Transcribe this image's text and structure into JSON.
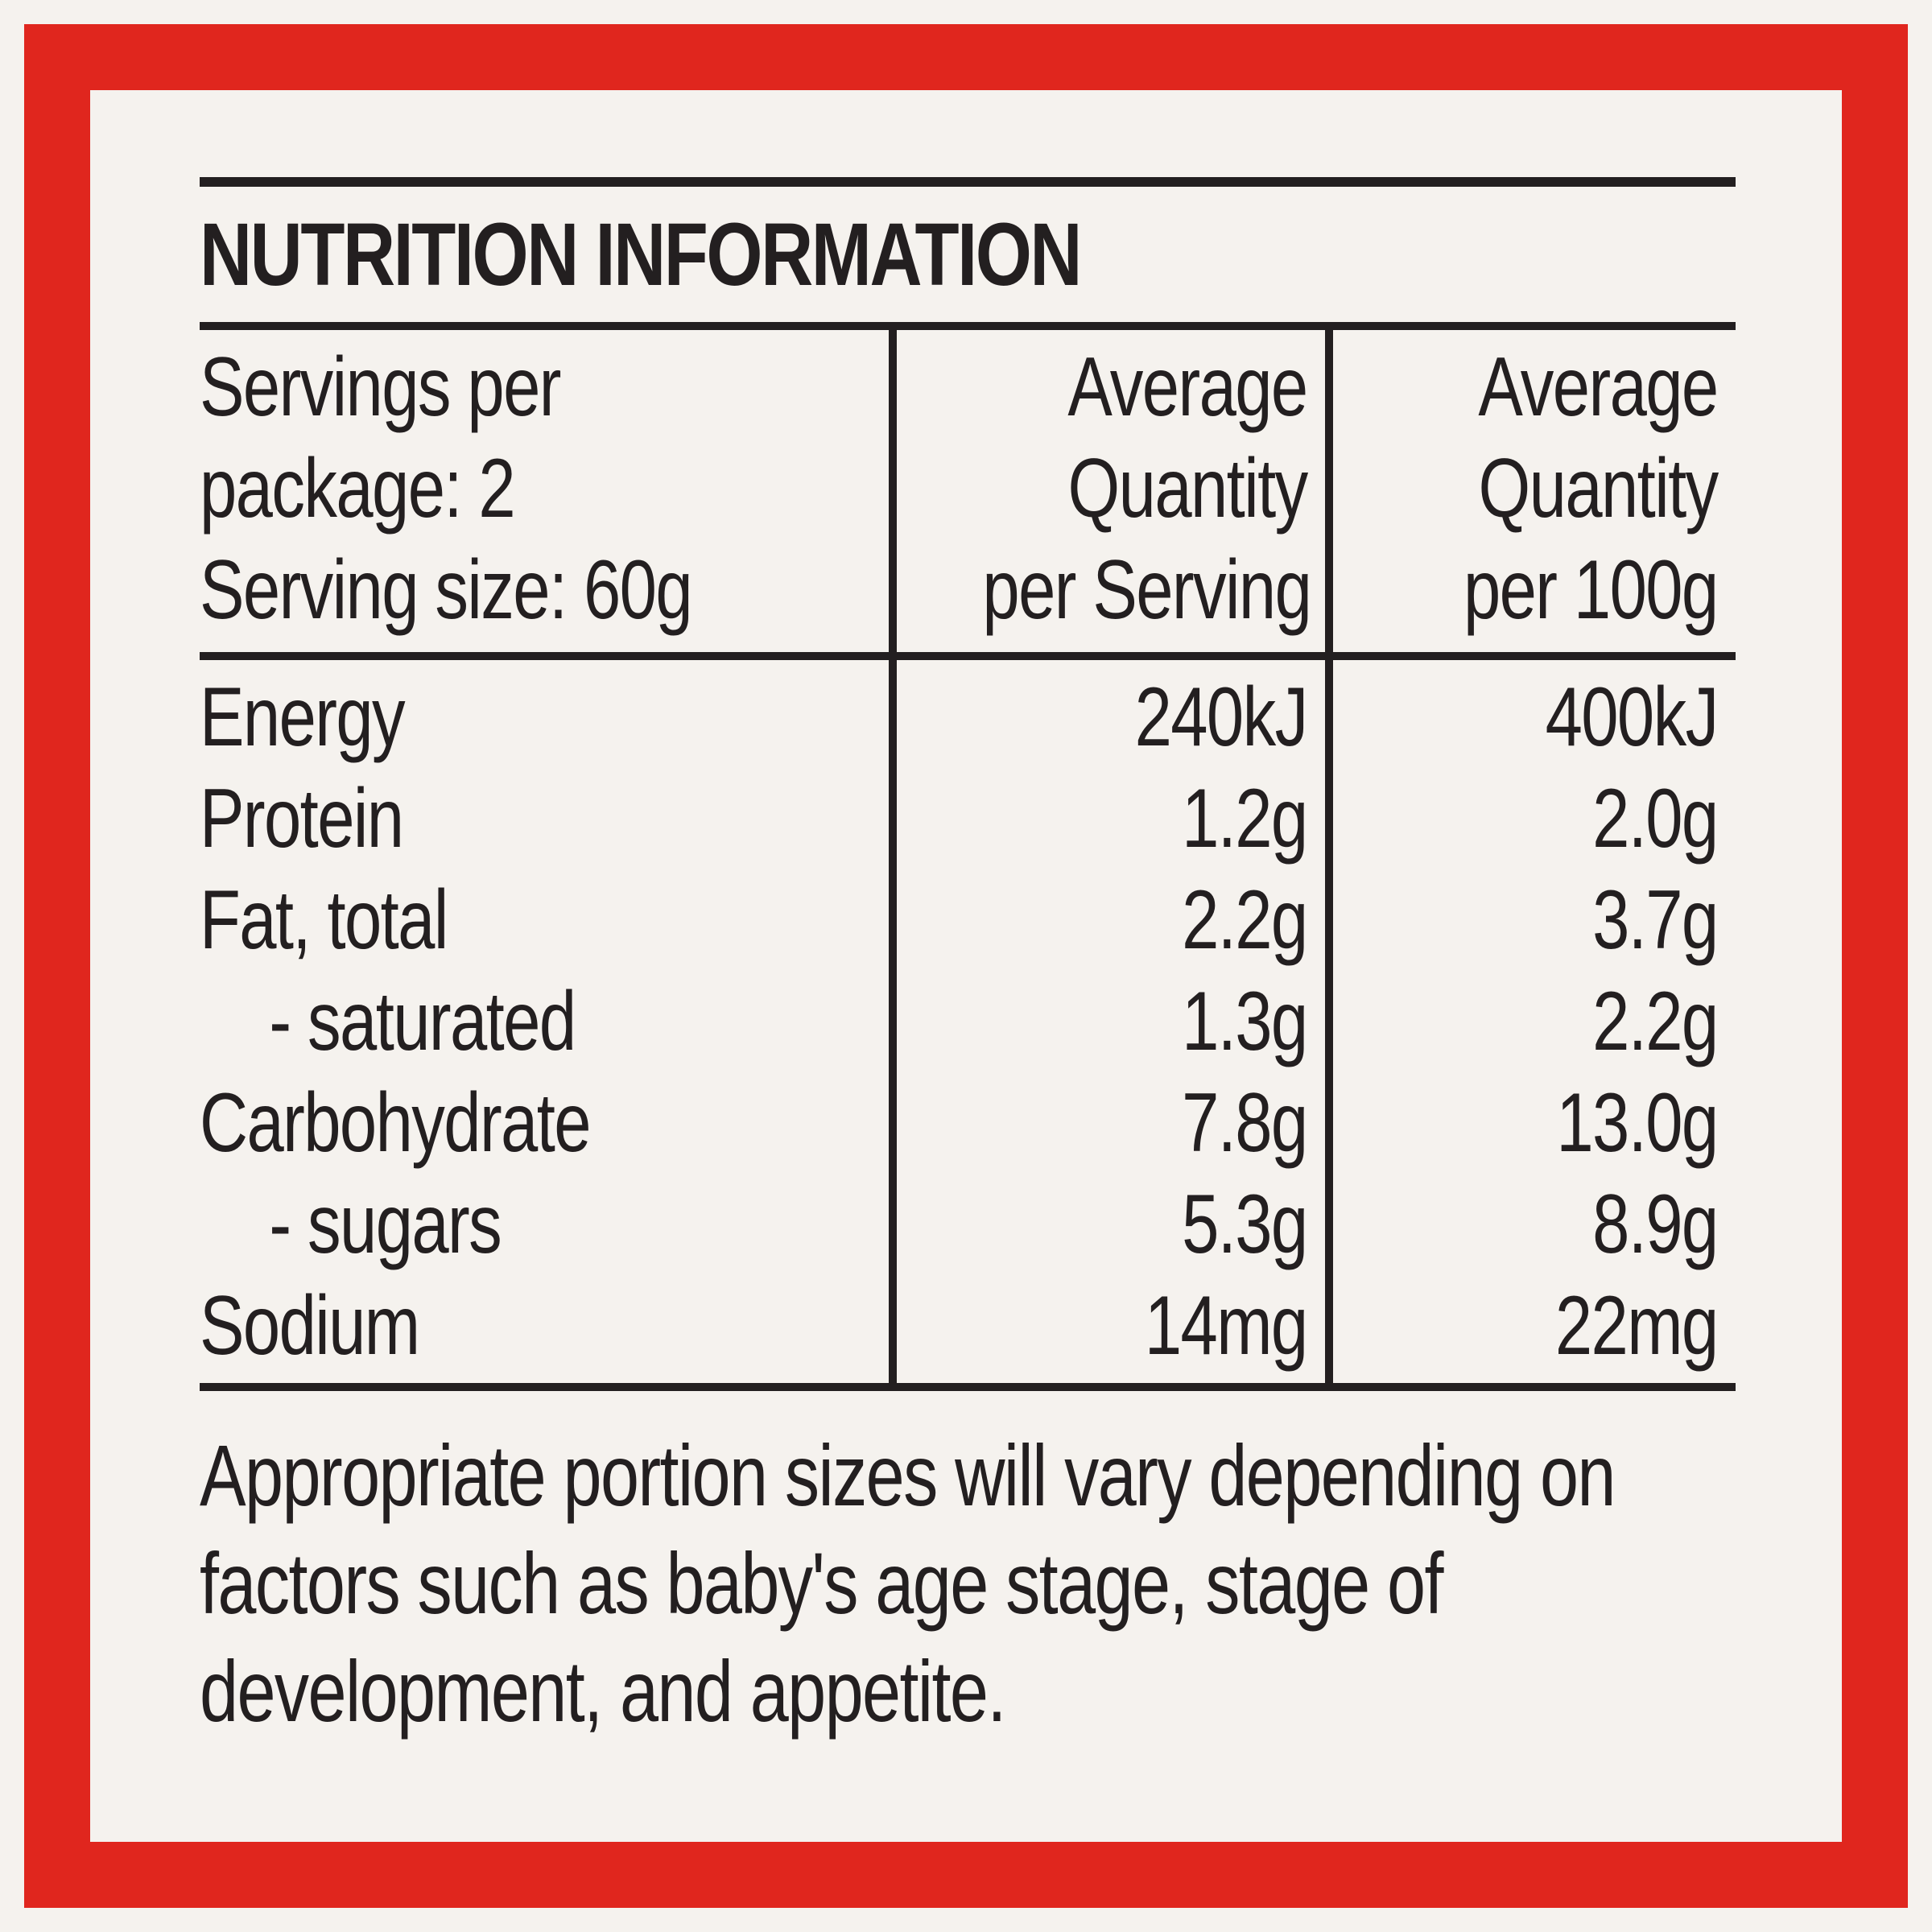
{
  "panel": {
    "title": "NUTRITION INFORMATION",
    "colors": {
      "border": "#e0261e",
      "background": "#f5f2ee",
      "ink": "#231f20"
    }
  },
  "header": {
    "servings_line1": "Servings per",
    "servings_line2": "package: 2",
    "serving_size": "Serving size: 60g",
    "col_serving": [
      "Average",
      "Quantity",
      "per Serving"
    ],
    "col_100g": [
      "Average",
      "Quantity",
      "per 100g"
    ]
  },
  "rows": [
    {
      "label": "Energy",
      "per_serving": "240kJ",
      "per_100g": "400kJ"
    },
    {
      "label": "Protein",
      "per_serving": "1.2g",
      "per_100g": "2.0g"
    },
    {
      "label": "Fat, total",
      "per_serving": "2.2g",
      "per_100g": "3.7g"
    },
    {
      "label": "- saturated",
      "per_serving": "1.3g",
      "per_100g": "2.2g"
    },
    {
      "label": "Carbohydrate",
      "per_serving": "7.8g",
      "per_100g": "13.0g"
    },
    {
      "label": "- sugars",
      "per_serving": "5.3g",
      "per_100g": "8.9g"
    },
    {
      "label": "Sodium",
      "per_serving": "14mg",
      "per_100g": "22mg"
    }
  ],
  "footnote": "Appropriate portion sizes will vary depending on factors such as baby's age stage, stage of development, and appetite."
}
